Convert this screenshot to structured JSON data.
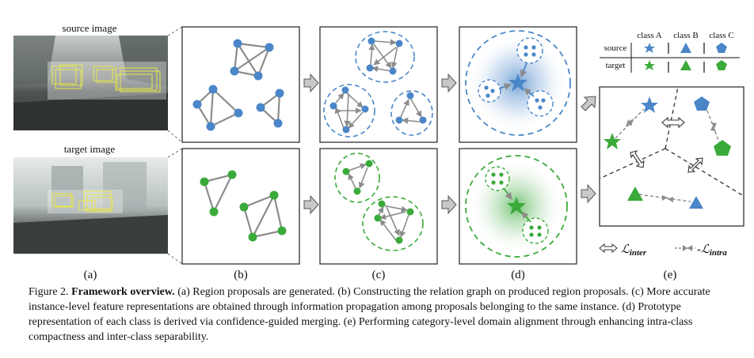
{
  "panels": {
    "a": {
      "label": "(a)",
      "source_title": "source image",
      "target_title": "target image"
    },
    "b": {
      "label": "(b)"
    },
    "c": {
      "label": "(c)"
    },
    "d": {
      "label": "(d)"
    },
    "e": {
      "label": "(e)",
      "legend": {
        "columns": [
          "class A",
          "class B",
          "class C"
        ],
        "rows": [
          "source",
          "target"
        ]
      },
      "loss_inter": "inter",
      "loss_intra": "intra",
      "loss_symbol": "ℒ"
    }
  },
  "colors": {
    "source": "#4a86c8",
    "target": "#3aaa3a",
    "edge": "#8c8c8c",
    "box": "#e8e84a"
  },
  "caption": {
    "figure_num": "Figure 2.",
    "heading": "Framework overview.",
    "body": " (a) Region proposals are generated. (b) Constructing the relation graph on produced region proposals. (c) More accurate instance-level feature representations are obtained through information propagation among proposals belonging to the same instance. (d) Prototype representation of each class is derived via confidence-guided merging. (e) Performing category-level domain alignment through enhancing intra-class compactness and inter-class separability."
  }
}
